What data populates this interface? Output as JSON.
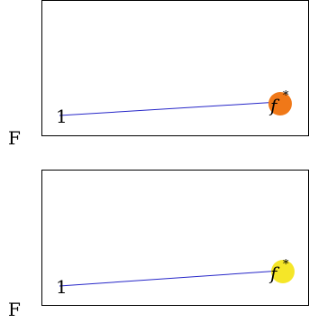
{
  "panels": [
    {
      "side_label": "F",
      "start_label": "1",
      "end_label_base": "f",
      "end_label_sup": "*",
      "marker_color": "#f07818",
      "line_color": "#2626c8"
    },
    {
      "side_label": "F",
      "start_label": "1",
      "end_label_base": "f",
      "end_label_sup": "*",
      "marker_color": "#f5e628",
      "line_color": "#2626c8"
    }
  ]
}
